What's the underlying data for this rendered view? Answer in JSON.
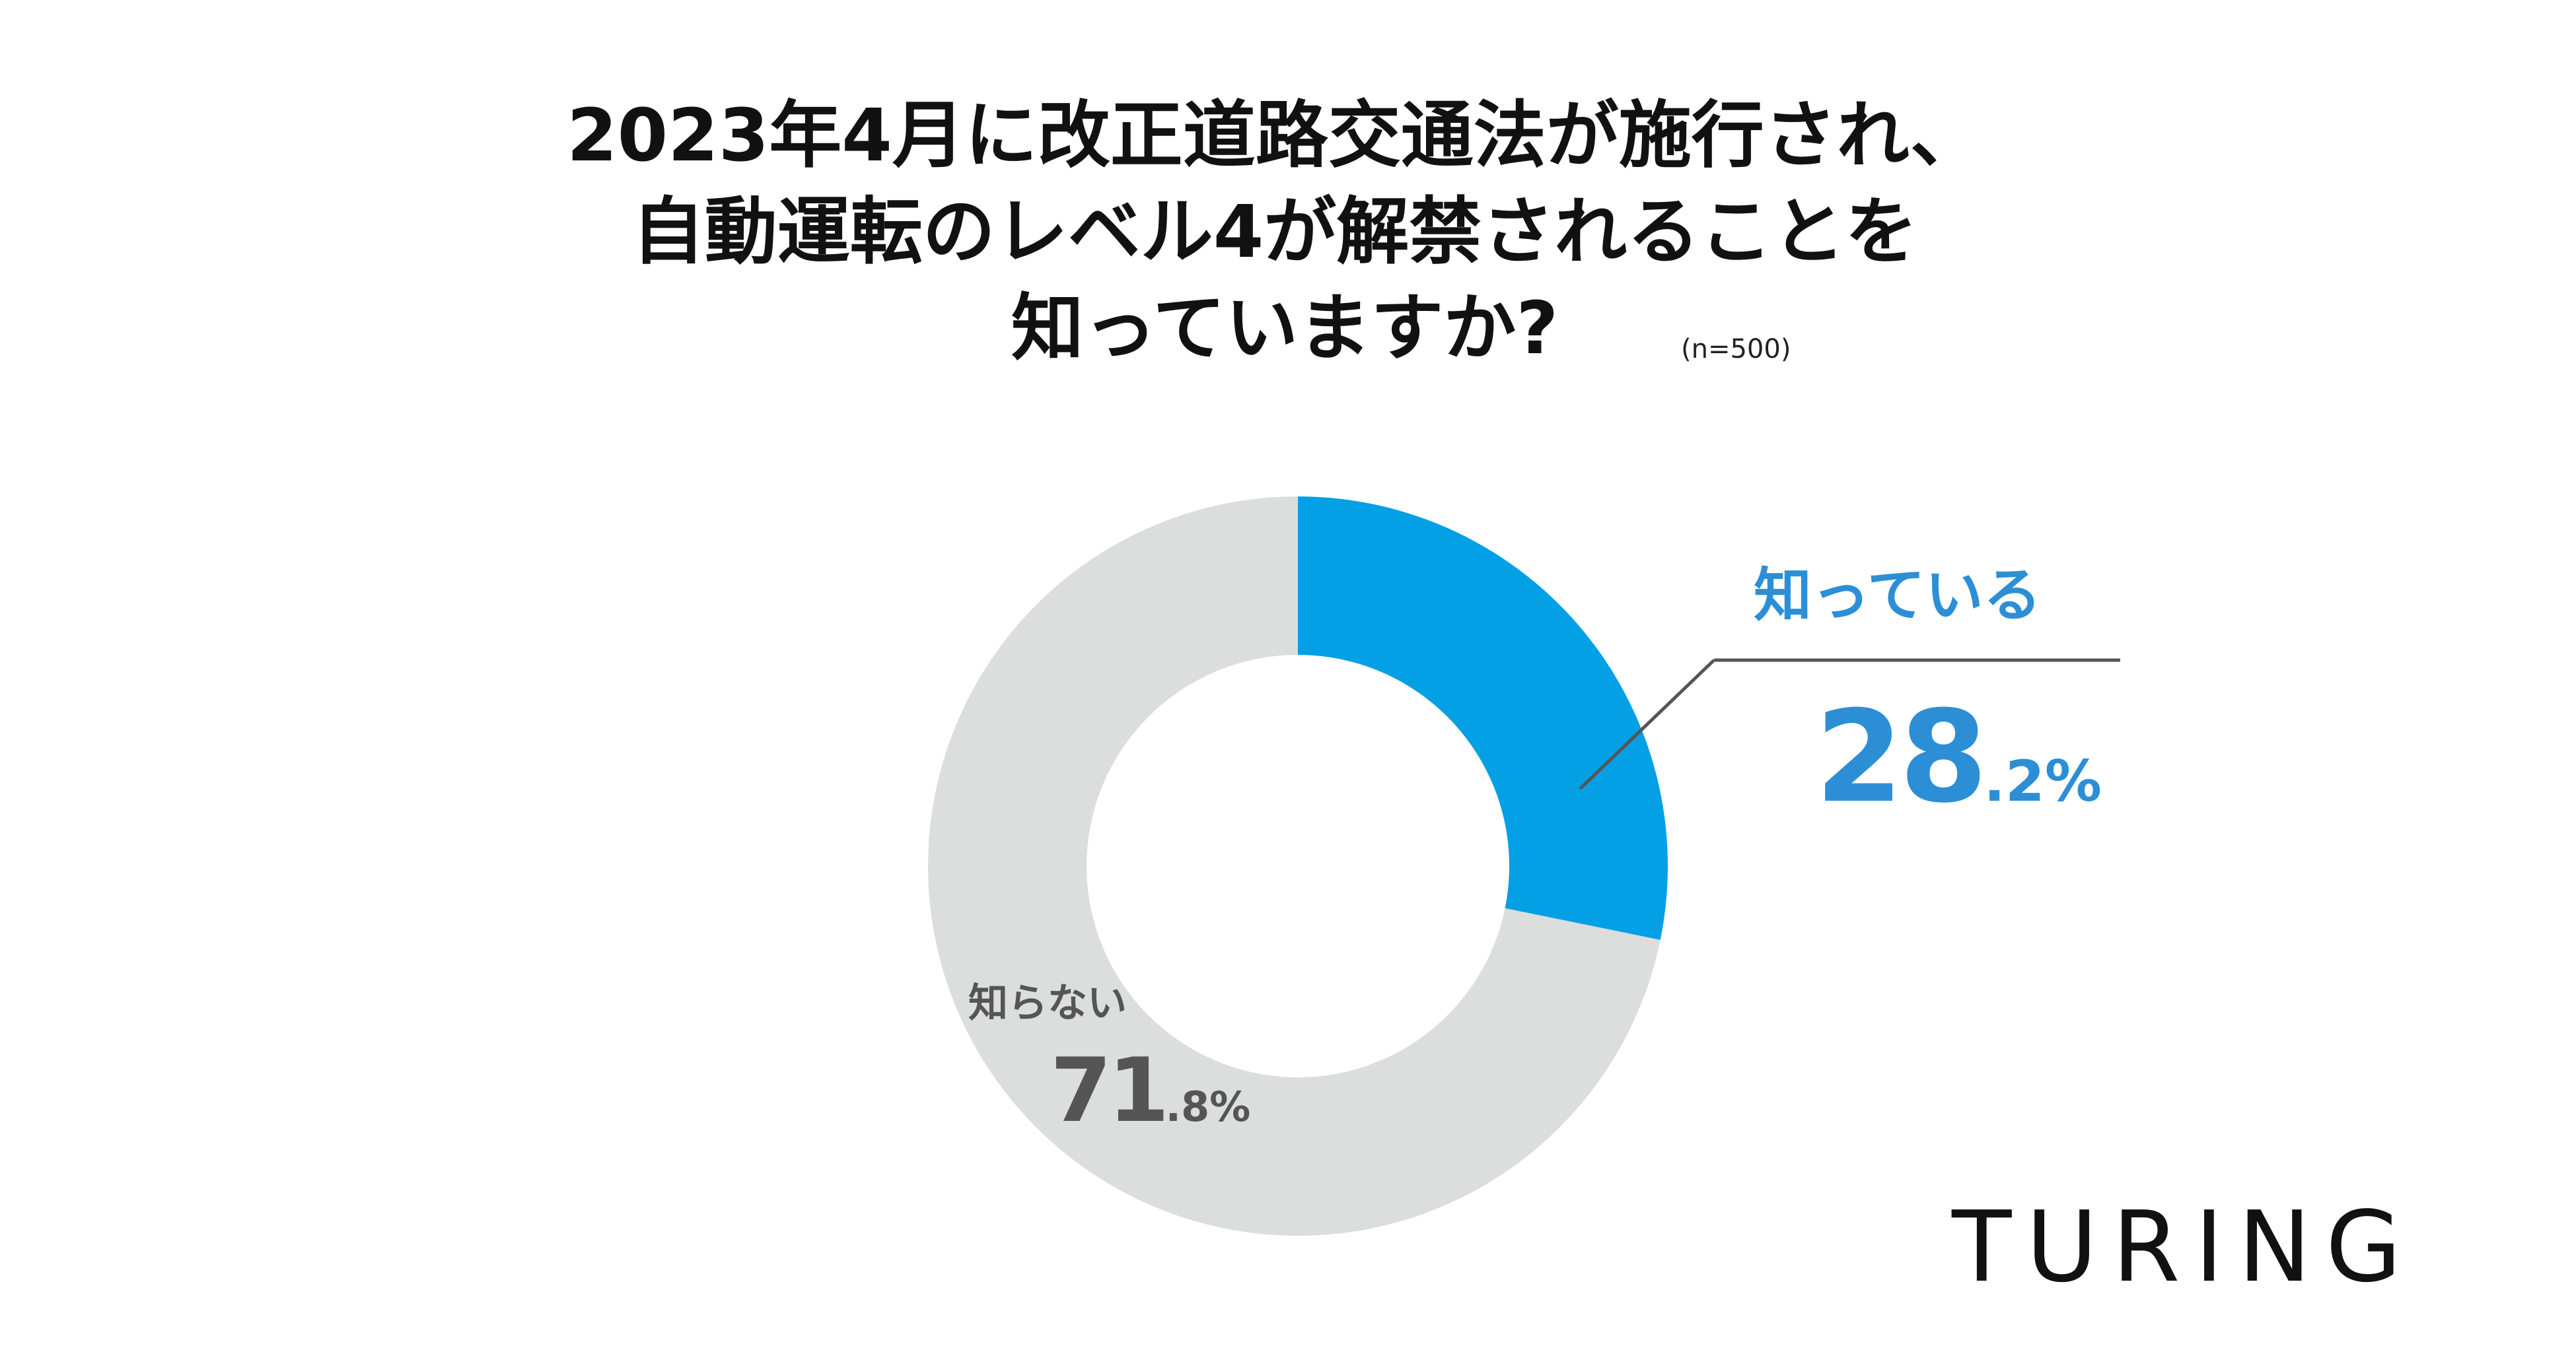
{
  "title": {
    "line1": "2023年4月に改正道路交通法が施行され、",
    "line2": "自動運転のレベル4が解禁されることを",
    "line3": "知っていますか?"
  },
  "sample_note": "(n=500)",
  "colors": {
    "know": "#03A0E6",
    "dont_know": "#DCDDDD",
    "know_label": "#2C8FD6",
    "dont_know_label": "#555555",
    "leader_line": "#555555"
  },
  "chart_data": {
    "type": "pie",
    "style": "donut",
    "title": "2023年4月に改正道路交通法が施行され、自動運転のレベル4が解禁されることを知っていますか?",
    "categories": [
      "知っている",
      "知らない"
    ],
    "values": [
      28.2,
      71.8
    ],
    "unit": "%",
    "labels": [
      {
        "name": "知っている",
        "big": "28",
        "small": ".2%"
      },
      {
        "name": "知らない",
        "big": "71",
        "small": ".8%"
      }
    ]
  },
  "logo": "TURING"
}
